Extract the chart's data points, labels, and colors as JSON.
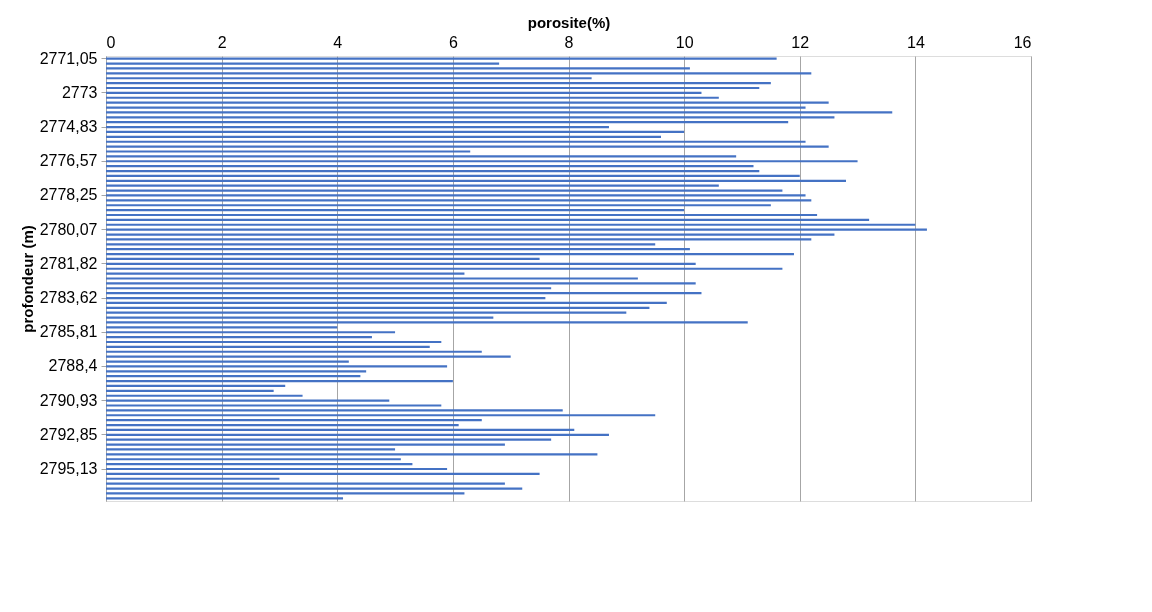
{
  "chart_data": {
    "type": "bar",
    "orientation": "horizontal",
    "xlabel": "porosite(%)",
    "ylabel": "profondeur (m)",
    "categories": [
      "2771,05",
      null,
      null,
      null,
      null,
      null,
      null,
      "2773",
      null,
      null,
      null,
      null,
      null,
      null,
      "2774,83",
      null,
      null,
      null,
      null,
      null,
      null,
      "2776,57",
      null,
      null,
      null,
      null,
      null,
      null,
      "2778,25",
      null,
      null,
      null,
      null,
      null,
      null,
      "2780,07",
      null,
      null,
      null,
      null,
      null,
      null,
      "2781,82",
      null,
      null,
      null,
      null,
      null,
      null,
      "2783,62",
      null,
      null,
      null,
      null,
      null,
      null,
      "2785,81",
      null,
      null,
      null,
      null,
      null,
      null,
      "2788,4",
      null,
      null,
      null,
      null,
      null,
      null,
      "2790,93",
      null,
      null,
      null,
      null,
      null,
      null,
      "2792,85",
      null,
      null,
      null,
      null,
      null,
      null,
      "2795,13",
      null,
      null,
      null,
      null,
      null,
      null
    ],
    "values": [
      11.6,
      6.8,
      10.1,
      12.2,
      8.4,
      11.5,
      11.3,
      10.3,
      10.6,
      12.5,
      12.1,
      13.6,
      12.6,
      11.8,
      8.7,
      10.0,
      9.6,
      12.1,
      12.5,
      6.3,
      10.9,
      13.0,
      11.2,
      11.3,
      12.0,
      12.8,
      10.6,
      11.7,
      12.1,
      12.2,
      11.5,
      10.0,
      12.3,
      13.2,
      14.0,
      14.2,
      12.6,
      12.2,
      9.5,
      10.1,
      11.9,
      7.5,
      10.2,
      11.7,
      6.2,
      9.2,
      10.2,
      7.7,
      10.3,
      7.6,
      9.7,
      9.4,
      9.0,
      6.7,
      11.1,
      4.0,
      5.0,
      4.6,
      5.8,
      5.6,
      6.5,
      7.0,
      4.2,
      5.9,
      4.5,
      4.4,
      6.0,
      3.1,
      2.9,
      3.4,
      4.9,
      5.8,
      7.9,
      9.5,
      6.5,
      6.1,
      8.1,
      8.7,
      7.7,
      6.9,
      5.0,
      8.5,
      5.1,
      5.3,
      5.9,
      7.5,
      3.0,
      6.9,
      7.2,
      6.2,
      4.1
    ],
    "color": "#4472c4",
    "xlim": [
      0,
      16
    ],
    "xticks": [
      0,
      2,
      4,
      6,
      8,
      10,
      12,
      14,
      16
    ],
    "grid": "x"
  }
}
